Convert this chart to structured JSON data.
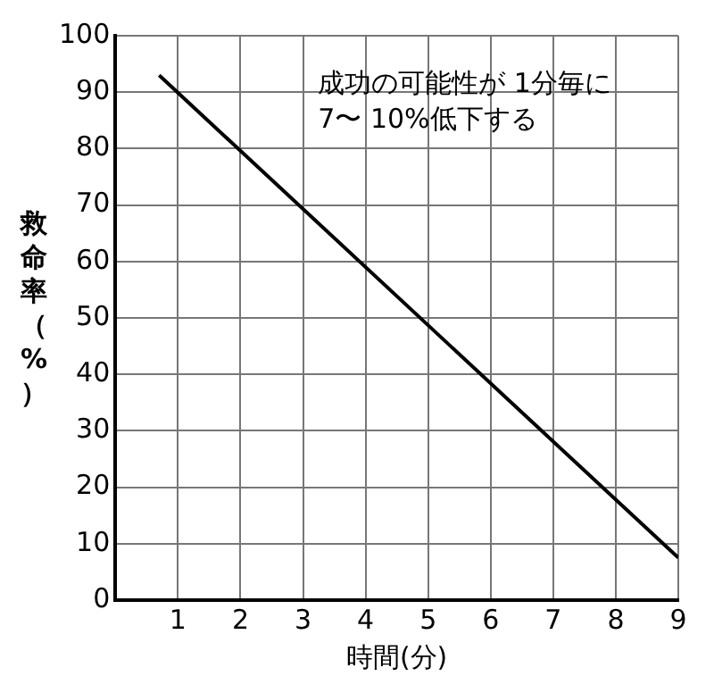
{
  "chart_data": {
    "type": "line",
    "xlabel": "時間(分)",
    "ylabel": "救命率（%）",
    "annotations": [
      "成功の可能性が 1分毎に\n7〜 10%低下する"
    ],
    "x": [
      0.7,
      9
    ],
    "series": [
      {
        "color": "#000000",
        "values": [
          93,
          7.5
        ]
      }
    ],
    "xlim": [
      0,
      9
    ],
    "xticks": [
      1,
      2,
      3,
      4,
      5,
      6,
      7,
      8,
      9
    ],
    "ylim": [
      0,
      100
    ],
    "yticks": [
      0,
      10,
      20,
      30,
      40,
      50,
      60,
      70,
      80,
      90,
      100
    ],
    "grid": true,
    "legend": false,
    "marker": "none",
    "line_style": "solid"
  }
}
